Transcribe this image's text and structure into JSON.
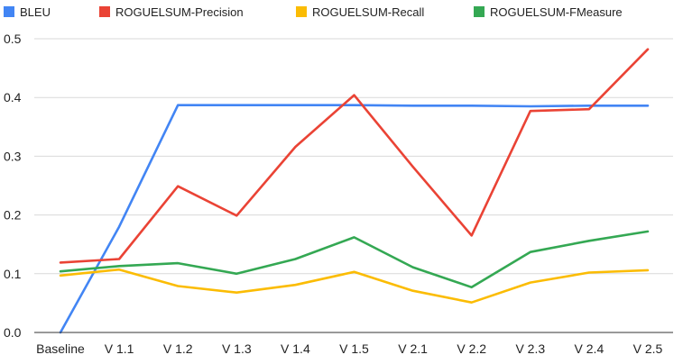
{
  "chart_data": {
    "type": "line",
    "title": "",
    "xlabel": "",
    "ylabel": "",
    "categories": [
      "Baseline",
      "V 1.1",
      "V 1.2",
      "V 1.3",
      "V 1.4",
      "V 1.5",
      "V 2.1",
      "V 2.2",
      "V 2.3",
      "V 2.4",
      "V 2.5"
    ],
    "ylim": [
      0,
      0.5
    ],
    "yticks": [
      "0.0",
      "0.1",
      "0.2",
      "0.3",
      "0.4",
      "0.5"
    ],
    "grid": true,
    "legend_position": "top",
    "series": [
      {
        "name": "BLEU",
        "color": "#4285f4",
        "values": [
          0.0,
          0.18,
          0.387,
          0.387,
          0.387,
          0.387,
          0.386,
          0.386,
          0.385,
          0.386,
          0.386
        ]
      },
      {
        "name": "ROGUELSUM-Precision",
        "color": "#ea4335",
        "values": [
          0.119,
          0.125,
          0.249,
          0.199,
          0.316,
          0.404,
          0.282,
          0.165,
          0.377,
          0.38,
          0.482
        ]
      },
      {
        "name": "ROGUELSUM-Recall",
        "color": "#fbbc04",
        "values": [
          0.097,
          0.107,
          0.079,
          0.068,
          0.081,
          0.103,
          0.071,
          0.051,
          0.085,
          0.102,
          0.106
        ]
      },
      {
        "name": "ROGUELSUM-FMeasure",
        "color": "#34a853",
        "values": [
          0.104,
          0.113,
          0.118,
          0.1,
          0.125,
          0.162,
          0.111,
          0.077,
          0.137,
          0.156,
          0.172
        ]
      }
    ]
  }
}
